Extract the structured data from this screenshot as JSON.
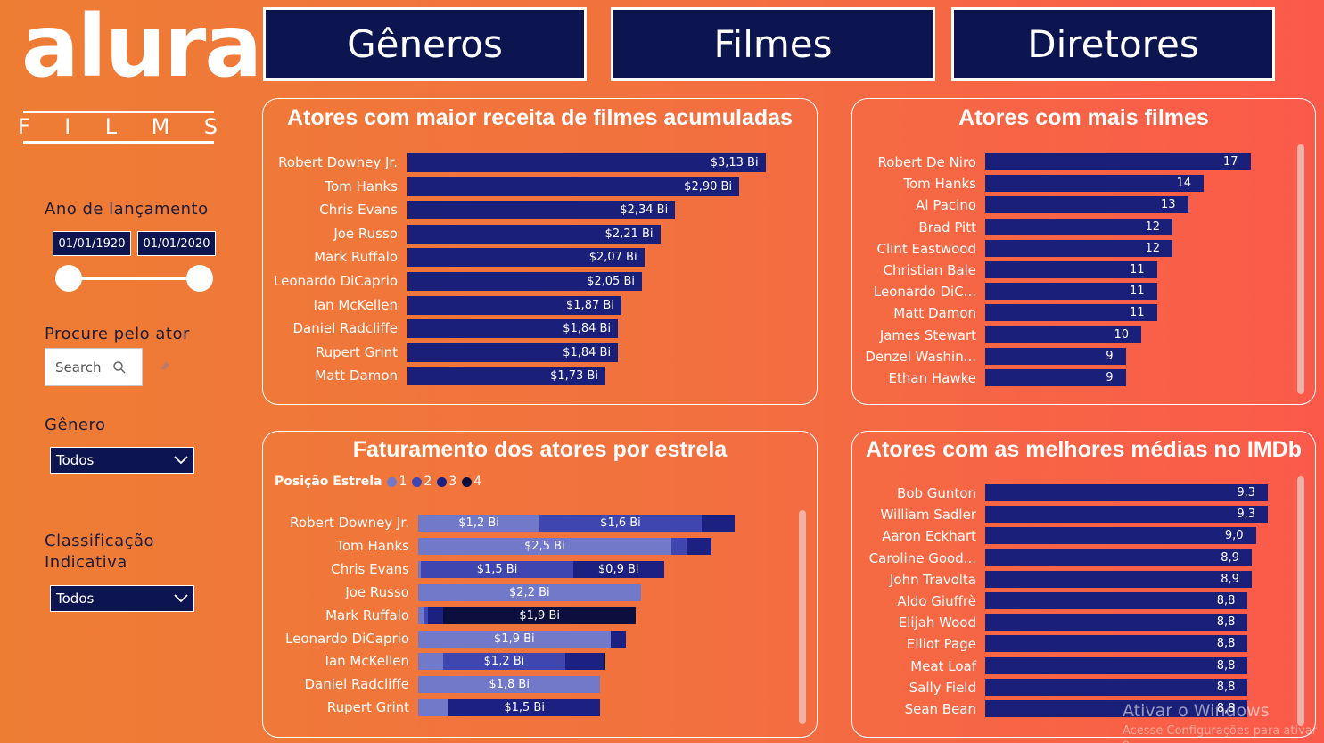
{
  "brand": {
    "logo_word": "alura",
    "logo_sub": [
      "F",
      "I",
      "L",
      "M",
      "S"
    ]
  },
  "nav": {
    "buttons": [
      "Gêneros",
      "Filmes",
      "Diretores"
    ]
  },
  "filters": {
    "year_label": "Ano de lançamento",
    "date_start": "01/01/1920",
    "date_end": "01/01/2020",
    "actor_label": "Procure pelo ator",
    "search_placeholder": "Search",
    "genre_label": "Gênero",
    "genre_value": "Todos",
    "rating_label_1": "Classificação",
    "rating_label_2": "Indicativa",
    "rating_value": "Todos"
  },
  "chart_data": [
    {
      "type": "bar",
      "title": "Atores com maior receita de filmes acumuladas",
      "categories": [
        "Robert Downey Jr.",
        "Tom Hanks",
        "Chris Evans",
        "Joe Russo",
        "Mark Ruffalo",
        "Leonardo DiCaprio",
        "Ian McKellen",
        "Daniel Radcliffe",
        "Rupert Grint",
        "Matt Damon"
      ],
      "values": [
        3.13,
        2.9,
        2.34,
        2.21,
        2.07,
        2.05,
        1.87,
        1.84,
        1.84,
        1.73
      ],
      "labels": [
        "$3,13 Bi",
        "$2,90 Bi",
        "$2,34 Bi",
        "$2,21 Bi",
        "$2,07 Bi",
        "$2,05 Bi",
        "$1,87 Bi",
        "$1,84 Bi",
        "$1,84 Bi",
        "$1,73 Bi"
      ]
    },
    {
      "type": "bar",
      "title": "Atores com mais filmes",
      "categories": [
        "Robert De Niro",
        "Tom Hanks",
        "Al Pacino",
        "Brad Pitt",
        "Clint Eastwood",
        "Christian Bale",
        "Leonardo DiC...",
        "Matt Damon",
        "James Stewart",
        "Denzel Washin...",
        "Ethan Hawke"
      ],
      "values": [
        17,
        14,
        13,
        12,
        12,
        11,
        11,
        11,
        10,
        9,
        9
      ]
    },
    {
      "type": "bar",
      "title": "Faturamento dos atores por estrela",
      "legend_title": "Posição Estrela",
      "legend": [
        "1",
        "2",
        "3",
        "4"
      ],
      "colors": [
        "#7279c9",
        "#3f46b0",
        "#1c2080",
        "#0c0f3e"
      ],
      "categories": [
        "Robert Downey Jr.",
        "Tom Hanks",
        "Chris Evans",
        "Joe Russo",
        "Mark Ruffalo",
        "Leonardo DiCaprio",
        "Ian McKellen",
        "Daniel Radcliffe",
        "Rupert Grint"
      ],
      "series": [
        {
          "name": "1",
          "values": [
            1.2,
            2.5,
            0.03,
            2.2,
            0.05,
            1.9,
            0.25,
            1.8,
            0.3
          ],
          "labels": [
            "$1,2 Bi",
            "$2,5 Bi",
            "",
            "$2,2 Bi",
            "",
            "$1,9 Bi",
            "",
            "$1,8 Bi",
            ""
          ]
        },
        {
          "name": "2",
          "values": [
            1.6,
            0.15,
            1.5,
            0,
            0.05,
            0,
            1.2,
            0,
            0
          ],
          "labels": [
            "$1,6 Bi",
            "",
            "$1,5 Bi",
            "",
            "",
            "",
            "$1,2 Bi",
            "",
            ""
          ]
        },
        {
          "name": "3",
          "values": [
            0.33,
            0.25,
            0.9,
            0,
            0.15,
            0.15,
            0.38,
            0,
            1.5
          ],
          "labels": [
            "",
            "",
            "$0,9 Bi",
            "",
            "",
            "",
            "",
            "",
            "$1,5 Bi"
          ]
        },
        {
          "name": "4",
          "values": [
            0,
            0,
            0,
            0,
            1.9,
            0,
            0.02,
            0,
            0
          ],
          "labels": [
            "",
            "",
            "",
            "",
            "$1,9 Bi",
            "",
            "",
            "",
            ""
          ]
        }
      ]
    },
    {
      "type": "bar",
      "title": "Atores com as melhores médias no IMDb",
      "categories": [
        "Bob Gunton",
        "William Sadler",
        "Aaron Eckhart",
        "Caroline Good...",
        "John Travolta",
        "Aldo Giuffrè",
        "Elijah Wood",
        "Elliot Page",
        "Meat Loaf",
        "Sally Field",
        "Sean Bean"
      ],
      "values": [
        9.3,
        9.3,
        9.0,
        8.9,
        8.9,
        8.8,
        8.8,
        8.8,
        8.8,
        8.8,
        8.8
      ],
      "labels": [
        "9,3",
        "9,3",
        "9,0",
        "8,9",
        "8,9",
        "8,8",
        "8,8",
        "8,8",
        "8,8",
        "8,8",
        "8,8"
      ]
    }
  ],
  "watermark": {
    "line1": "Ativar o Windows",
    "line2": "Acesse Configurações para ativar o"
  }
}
